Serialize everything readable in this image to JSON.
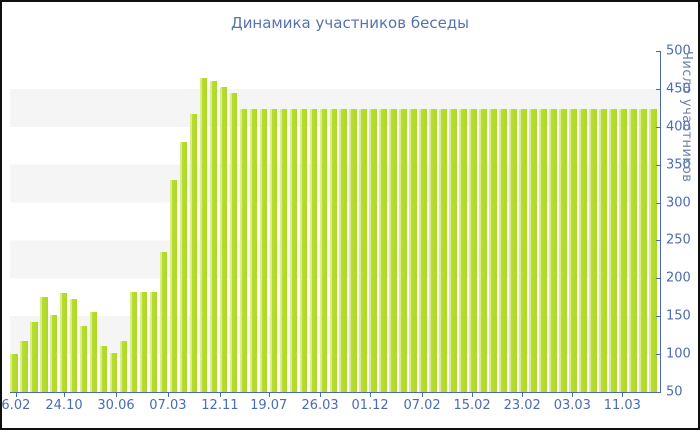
{
  "window": {
    "background": "#ffffff",
    "border_color": "#0f0f0f"
  },
  "colors": {
    "bar_main": "#b7dd33",
    "bar_highlight": "#d9ed8d",
    "stripe_gray": "#f5f5f5",
    "axis_line": "#4a69b0",
    "tick_label": "#4a6cb3",
    "title_text": "#5673ae",
    "ylabel_text": "#6e80a8"
  },
  "chart_data": {
    "type": "bar",
    "title": "Динамика участников беседы",
    "xlabel": "",
    "ylabel": "Число участников",
    "ylim": [
      50,
      500
    ],
    "y_ticks": [
      500,
      450,
      400,
      350,
      300,
      250,
      200,
      150,
      100,
      50
    ],
    "grid": "horizontal striped bands, 50-unit alternating white/gray",
    "legend": "none",
    "x_tick_labels": [
      "6.02",
      "24.10",
      "30.06",
      "07.03",
      "12.11",
      "19.07",
      "26.03",
      "01.12",
      "07.02",
      "15.02",
      "23.02",
      "03.03",
      "11.03"
    ],
    "x_tick_positions_pct": [
      0.9,
      8.3,
      16.3,
      24.3,
      32.3,
      39.8,
      47.7,
      55.4,
      63.4,
      71.1,
      78.8,
      86.5,
      94.2
    ],
    "values": [
      100,
      117,
      142,
      175,
      152,
      181,
      173,
      137,
      156,
      111,
      101,
      117,
      182,
      182,
      182,
      235,
      330,
      380,
      417,
      465,
      460,
      453,
      445,
      424,
      423,
      423,
      423,
      423,
      423,
      423,
      423,
      423,
      423,
      423,
      423,
      423,
      423,
      423,
      423,
      423,
      423,
      423,
      423,
      423,
      423,
      423,
      423,
      423,
      423,
      423,
      423,
      423,
      423,
      423,
      423,
      423,
      423,
      423,
      423,
      423,
      423,
      423,
      423,
      423,
      423
    ]
  }
}
